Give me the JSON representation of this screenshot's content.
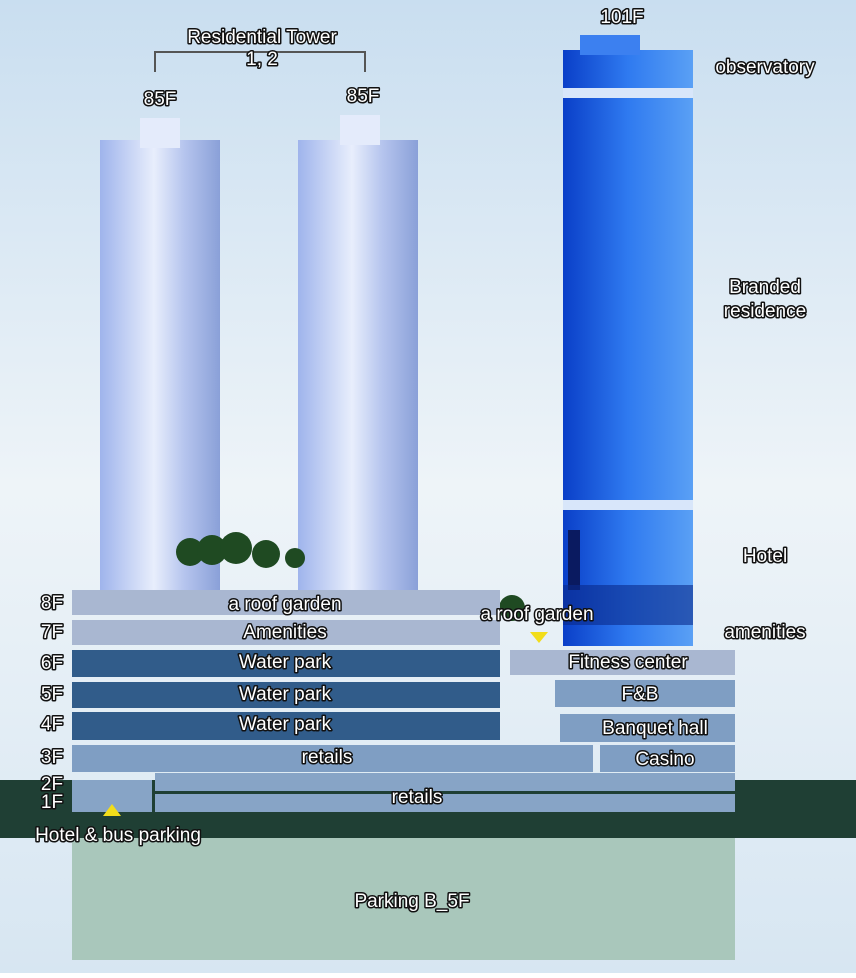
{
  "header": {
    "title_lines": [
      "Residential Tower",
      "1, 2"
    ]
  },
  "towers": [
    {
      "height": "85F"
    },
    {
      "height": "85F"
    },
    {
      "height": "101F"
    }
  ],
  "main_tower_zones": [
    {
      "lines": [
        "observatory"
      ]
    },
    {
      "lines": [
        "Branded",
        "residence"
      ]
    },
    {
      "lines": [
        "Hotel"
      ]
    },
    {
      "lines": [
        "amenities"
      ]
    }
  ],
  "floors": [
    {
      "level": "8F",
      "label": "a roof garden"
    },
    {
      "level": "7F",
      "label": "Amenities"
    },
    {
      "level": "6F",
      "label": "Water park"
    },
    {
      "level": "5F",
      "label": "Water park"
    },
    {
      "level": "4F",
      "label": "Water park"
    },
    {
      "level": "3F",
      "label": "retails"
    },
    {
      "level": "2F",
      "label": "retails"
    },
    {
      "level": "1F",
      "label": "Hotel & bus parking"
    }
  ],
  "podium_right": [
    "a roof garden",
    "Fitness center",
    "F&B",
    "Banquet hall",
    "Casino"
  ],
  "basement": "Parking B_5F"
}
